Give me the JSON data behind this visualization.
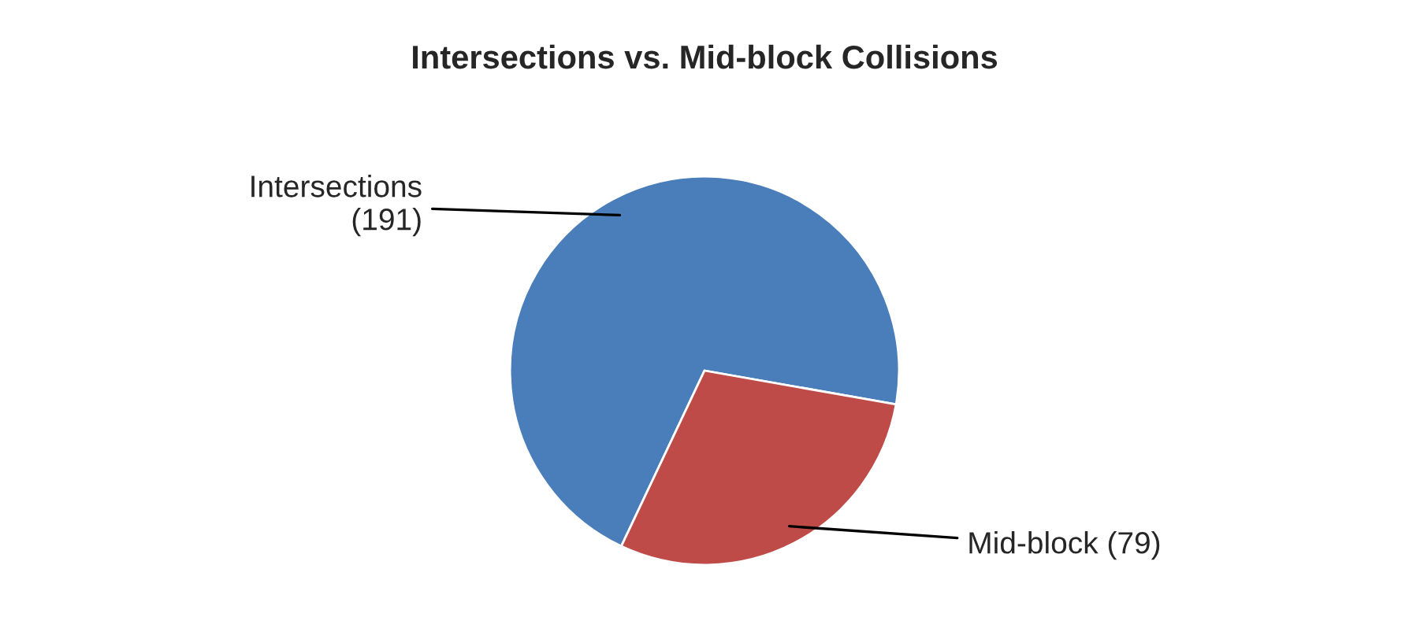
{
  "chart_data": {
    "type": "pie",
    "title": "Intersections vs. Mid-block Collisions",
    "categories": [
      "Intersections",
      "Mid-block"
    ],
    "values": [
      191,
      79
    ],
    "colors": [
      "#4a7ebb",
      "#be4b48"
    ],
    "value_labels": [
      "(191)",
      "(79)"
    ],
    "legend": false
  }
}
